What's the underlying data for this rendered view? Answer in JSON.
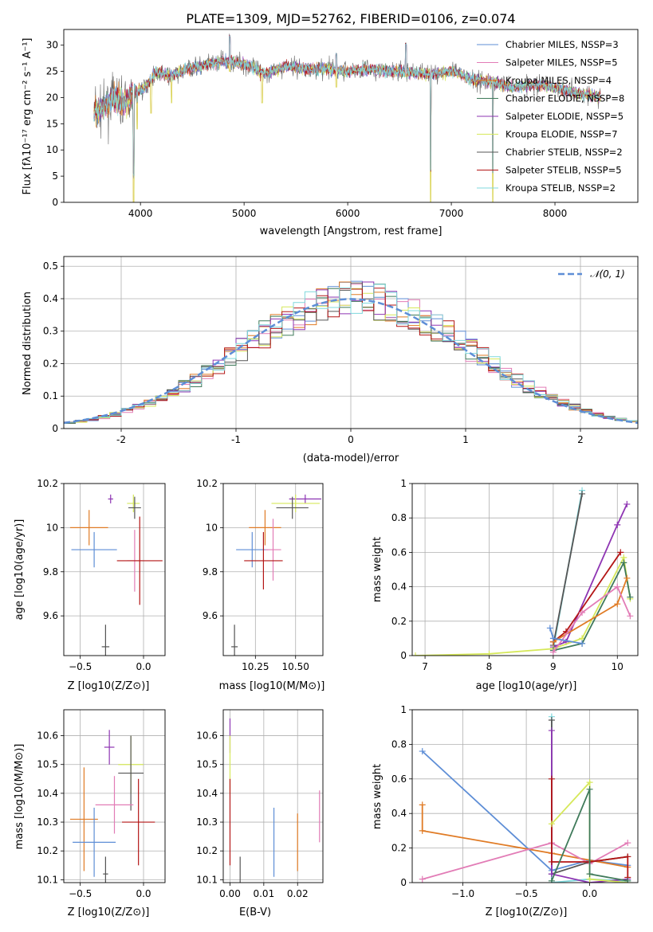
{
  "chart_data": [
    {
      "id": "spectrum",
      "type": "line",
      "title": "PLATE=1309, MJD=52762, FIBERID=0106, z=0.074",
      "xlabel": "wavelength [Angstrom, rest frame]",
      "ylabel": "Flux [fλ10⁻¹⁷ erg cm⁻² s⁻¹ A⁻¹]",
      "xlim": [
        3260,
        8800
      ],
      "ylim": [
        0,
        33
      ],
      "xticks": [
        4000,
        5000,
        6000,
        7000,
        8000
      ],
      "yticks": [
        0,
        5,
        10,
        15,
        20,
        25,
        30
      ],
      "legend_position": "top-right",
      "legend": [
        {
          "label": "Chabrier MILES, NSSP=3",
          "color": "#5e8ed6"
        },
        {
          "label": "Salpeter MILES, NSSP=5",
          "color": "#e27cb6"
        },
        {
          "label": "Kroupa MILES, NSSP=4",
          "color": "#e07b25"
        },
        {
          "label": "Chabrier ELODIE, NSSP=8",
          "color": "#3f7a5a"
        },
        {
          "label": "Salpeter ELODIE, NSSP=5",
          "color": "#8e35b3"
        },
        {
          "label": "Kroupa ELODIE, NSSP=7",
          "color": "#d6e85a"
        },
        {
          "label": "Chabrier STELIB, NSSP=2",
          "color": "#555555"
        },
        {
          "label": "Salpeter STELIB, NSSP=5",
          "color": "#b31515"
        },
        {
          "label": "Kroupa STELIB, NSSP=2",
          "color": "#7fd8dc"
        }
      ],
      "continuum": [
        [
          3550,
          17
        ],
        [
          3650,
          18
        ],
        [
          3750,
          20
        ],
        [
          3850,
          19
        ],
        [
          3950,
          21
        ],
        [
          4050,
          22
        ],
        [
          4150,
          25
        ],
        [
          4300,
          24
        ],
        [
          4450,
          25.5
        ],
        [
          4600,
          26
        ],
        [
          4800,
          27
        ],
        [
          5000,
          26.5
        ],
        [
          5200,
          24.5
        ],
        [
          5400,
          26
        ],
        [
          5600,
          25.5
        ],
        [
          5800,
          25.5
        ],
        [
          6000,
          25
        ],
        [
          6200,
          25.5
        ],
        [
          6400,
          25
        ],
        [
          6600,
          24.8
        ],
        [
          6800,
          24.5
        ],
        [
          7000,
          25
        ],
        [
          7200,
          23.5
        ],
        [
          7400,
          23
        ],
        [
          7600,
          22
        ],
        [
          7800,
          22.5
        ],
        [
          8000,
          22
        ],
        [
          8200,
          21
        ],
        [
          8450,
          20
        ]
      ],
      "features": [
        [
          3934,
          0
        ],
        [
          3968,
          14
        ],
        [
          4102,
          17
        ],
        [
          4300,
          19
        ],
        [
          4861,
          25
        ],
        [
          5175,
          19
        ],
        [
          5890,
          22
        ],
        [
          6563,
          24
        ],
        [
          6800,
          0
        ],
        [
          7400,
          0
        ]
      ]
    },
    {
      "id": "residuals",
      "type": "histogram",
      "xlabel": "(data-model)/error",
      "ylabel": "Normed distribution",
      "xlim": [
        -2.5,
        2.5
      ],
      "ylim": [
        0,
        0.53
      ],
      "xticks": [
        -2,
        -1,
        0,
        1,
        2
      ],
      "yticks": [
        0.0,
        0.1,
        0.2,
        0.3,
        0.4,
        0.5
      ],
      "legend": [
        {
          "label": "𝒩(0, 1)",
          "color": "#5e8ed6"
        }
      ],
      "legend_position": "top-right",
      "bin_width": 0.1
    },
    {
      "id": "age_vs_Z",
      "type": "scatter",
      "xlabel": "Z [log10(Z/Z⊙)]",
      "ylabel": "age [log10(age/yr)]",
      "xlim": [
        -0.63,
        0.17
      ],
      "ylim": [
        9.42,
        10.2
      ],
      "xticks": [
        -0.5,
        0.0
      ],
      "xtick_labels": [
        "−0.5",
        "0.0"
      ],
      "yticks": [
        9.6,
        9.8,
        10.0,
        10.2
      ],
      "points": [
        {
          "x": -0.26,
          "y": 10.13,
          "ex": 0.02,
          "ey": 0.02,
          "color": "#8e35b3"
        },
        {
          "x": -0.08,
          "y": 10.11,
          "ex": 0.05,
          "ey": 0.04,
          "color": "#d6e85a"
        },
        {
          "x": -0.07,
          "y": 10.09,
          "ex": 0.05,
          "ey": 0.05,
          "color": "#555555"
        },
        {
          "x": -0.43,
          "y": 10.0,
          "ex": 0.15,
          "ey": 0.08,
          "color": "#e07b25"
        },
        {
          "x": -0.39,
          "y": 9.9,
          "ex": 0.18,
          "ey": 0.08,
          "color": "#5e8ed6"
        },
        {
          "x": -0.07,
          "y": 9.85,
          "ex": 0.06,
          "ey": 0.14,
          "color": "#e27cb6"
        },
        {
          "x": -0.03,
          "y": 9.85,
          "ex": 0.18,
          "ey": 0.2,
          "color": "#b31515"
        },
        {
          "x": -0.3,
          "y": 9.46,
          "ex": 0.03,
          "ey": 0.1,
          "color": "#555555"
        }
      ]
    },
    {
      "id": "age_vs_mass",
      "type": "scatter",
      "xlabel": "mass [log10(M/M⊙)]",
      "ylabel": "",
      "xlim": [
        10.05,
        10.67
      ],
      "ylim": [
        9.42,
        10.2
      ],
      "xticks": [
        10.25,
        10.5
      ],
      "xtick_labels": [
        "10.25",
        "10.50"
      ],
      "yticks": [
        9.6,
        9.8,
        10.0,
        10.2
      ],
      "points": [
        {
          "x": 10.56,
          "y": 10.13,
          "ex": 0.1,
          "ey": 0.02,
          "color": "#8e35b3"
        },
        {
          "x": 10.5,
          "y": 10.11,
          "ex": 0.15,
          "ey": 0.04,
          "color": "#d6e85a"
        },
        {
          "x": 10.48,
          "y": 10.09,
          "ex": 0.1,
          "ey": 0.05,
          "color": "#555555"
        },
        {
          "x": 10.31,
          "y": 10.0,
          "ex": 0.1,
          "ey": 0.08,
          "color": "#e07b25"
        },
        {
          "x": 10.23,
          "y": 9.9,
          "ex": 0.1,
          "ey": 0.08,
          "color": "#5e8ed6"
        },
        {
          "x": 10.36,
          "y": 9.9,
          "ex": 0.05,
          "ey": 0.14,
          "color": "#e27cb6"
        },
        {
          "x": 10.3,
          "y": 9.85,
          "ex": 0.12,
          "ey": 0.13,
          "color": "#b31515"
        },
        {
          "x": 10.12,
          "y": 9.46,
          "ex": 0.02,
          "ey": 0.1,
          "color": "#555555"
        }
      ]
    },
    {
      "id": "weight_vs_age",
      "type": "line",
      "xlabel": "age [log10(age/yr)]",
      "ylabel": "mass weight",
      "xlim": [
        6.8,
        10.32
      ],
      "ylim": [
        0.0,
        1.0
      ],
      "xticks": [
        7,
        8,
        9,
        10
      ],
      "yticks": [
        0.0,
        0.2,
        0.4,
        0.6,
        0.8,
        1.0
      ],
      "series": [
        {
          "color": "#7fd8dc",
          "points": [
            [
              9.0,
              0.04
            ],
            [
              9.45,
              0.96
            ]
          ]
        },
        {
          "color": "#555555",
          "points": [
            [
              9.0,
              0.06
            ],
            [
              9.45,
              0.94
            ]
          ]
        },
        {
          "color": "#8e35b3",
          "points": [
            [
              9.0,
              0.05
            ],
            [
              9.2,
              0.08
            ],
            [
              10.0,
              0.76
            ],
            [
              10.15,
              0.88
            ]
          ]
        },
        {
          "color": "#b31515",
          "points": [
            [
              9.0,
              0.08
            ],
            [
              9.2,
              0.14
            ],
            [
              10.05,
              0.6
            ]
          ]
        },
        {
          "color": "#d6e85a",
          "points": [
            [
              6.85,
              0.0
            ],
            [
              8.0,
              0.01
            ],
            [
              9.0,
              0.04
            ],
            [
              9.45,
              0.1
            ],
            [
              10.1,
              0.57
            ],
            [
              10.2,
              0.33
            ]
          ]
        },
        {
          "color": "#3f7a5a",
          "points": [
            [
              9.0,
              0.03
            ],
            [
              9.45,
              0.07
            ],
            [
              10.1,
              0.54
            ],
            [
              10.2,
              0.34
            ]
          ]
        },
        {
          "color": "#e07b25",
          "points": [
            [
              9.0,
              0.08
            ],
            [
              10.0,
              0.3
            ],
            [
              10.15,
              0.45
            ]
          ]
        },
        {
          "color": "#e27cb6",
          "points": [
            [
              9.0,
              0.02
            ],
            [
              9.45,
              0.25
            ],
            [
              10.0,
              0.4
            ],
            [
              10.2,
              0.23
            ]
          ]
        },
        {
          "color": "#5e8ed6",
          "points": [
            [
              8.95,
              0.16
            ],
            [
              9.0,
              0.1
            ],
            [
              9.45,
              0.07
            ]
          ]
        }
      ]
    },
    {
      "id": "mass_vs_Z",
      "type": "scatter",
      "xlabel": "Z [log10(Z/Z⊙)]",
      "ylabel": "mass [log10(M/M⊙)]",
      "xlim": [
        -0.63,
        0.17
      ],
      "ylim": [
        10.09,
        10.69
      ],
      "xticks": [
        -0.5,
        0.0
      ],
      "xtick_labels": [
        "−0.5",
        "0.0"
      ],
      "yticks": [
        10.1,
        10.2,
        10.3,
        10.4,
        10.5,
        10.6
      ],
      "points": [
        {
          "x": -0.27,
          "y": 10.56,
          "ex": 0.04,
          "ey": 0.06,
          "color": "#8e35b3"
        },
        {
          "x": -0.1,
          "y": 10.5,
          "ex": 0.1,
          "ey": 0.1,
          "color": "#d6e85a"
        },
        {
          "x": -0.1,
          "y": 10.47,
          "ex": 0.1,
          "ey": 0.13,
          "color": "#555555"
        },
        {
          "x": -0.23,
          "y": 10.36,
          "ex": 0.15,
          "ey": 0.1,
          "color": "#e27cb6"
        },
        {
          "x": -0.47,
          "y": 10.31,
          "ex": 0.11,
          "ey": 0.18,
          "color": "#e07b25"
        },
        {
          "x": -0.04,
          "y": 10.3,
          "ex": 0.13,
          "ey": 0.15,
          "color": "#b31515"
        },
        {
          "x": -0.39,
          "y": 10.23,
          "ex": 0.17,
          "ey": 0.12,
          "color": "#5e8ed6"
        },
        {
          "x": -0.3,
          "y": 10.12,
          "ex": 0.02,
          "ey": 0.06,
          "color": "#555555"
        }
      ]
    },
    {
      "id": "mass_vs_ebv",
      "type": "scatter",
      "xlabel": "E(B-V)",
      "ylabel": "",
      "xlim": [
        -0.002,
        0.0275
      ],
      "ylim": [
        10.09,
        10.69
      ],
      "xticks": [
        0.0,
        0.01,
        0.02
      ],
      "xtick_labels": [
        "0.00",
        "0.01",
        "0.02"
      ],
      "yticks": [
        10.1,
        10.2,
        10.3,
        10.4,
        10.5,
        10.6
      ],
      "points": [
        {
          "x": 0.0,
          "y": 10.6,
          "ex": 0,
          "ey": 0.06,
          "color": "#8e35b3"
        },
        {
          "x": 0.0,
          "y": 10.5,
          "ex": 0,
          "ey": 0.1,
          "color": "#d6e85a"
        },
        {
          "x": 0.0,
          "y": 10.3,
          "ex": 0,
          "ey": 0.15,
          "color": "#b31515"
        },
        {
          "x": 0.003,
          "y": 10.12,
          "ex": 0,
          "ey": 0.06,
          "color": "#555555"
        },
        {
          "x": 0.013,
          "y": 10.23,
          "ex": 0,
          "ey": 0.12,
          "color": "#5e8ed6"
        },
        {
          "x": 0.02,
          "y": 10.23,
          "ex": 0,
          "ey": 0.1,
          "color": "#e07b25"
        },
        {
          "x": 0.0265,
          "y": 10.32,
          "ex": 0,
          "ey": 0.09,
          "color": "#e27cb6"
        }
      ]
    },
    {
      "id": "weight_vs_Z",
      "type": "line",
      "xlabel": "Z [log10(Z/Z⊙)]",
      "ylabel": "mass weight",
      "xlim": [
        -1.4,
        0.38
      ],
      "ylim": [
        0.0,
        1.0
      ],
      "xticks": [
        -1.0,
        -0.5,
        0.0
      ],
      "xtick_labels": [
        "−1.0",
        "−0.5",
        "0.0"
      ],
      "yticks": [
        0.0,
        0.2,
        0.4,
        0.6,
        0.8,
        1.0
      ],
      "series": [
        {
          "color": "#5e8ed6",
          "points": [
            [
              -1.32,
              0.76
            ],
            [
              -0.3,
              0.07
            ],
            [
              0.0,
              0.13
            ],
            [
              0.3,
              0.1
            ]
          ]
        },
        {
          "color": "#e07b25",
          "points": [
            [
              -1.32,
              0.45
            ],
            [
              -1.32,
              0.3
            ],
            [
              -0.3,
              0.17
            ],
            [
              0.3,
              0.09
            ]
          ]
        },
        {
          "color": "#e27cb6",
          "points": [
            [
              -1.32,
              0.02
            ],
            [
              -0.3,
              0.23
            ],
            [
              0.0,
              0.11
            ],
            [
              0.3,
              0.23
            ]
          ]
        },
        {
          "color": "#7fd8dc",
          "points": [
            [
              -0.3,
              0.96
            ],
            [
              -0.3,
              0.0
            ],
            [
              0.0,
              0.02
            ],
            [
              0.3,
              0.01
            ]
          ]
        },
        {
          "color": "#555555",
          "points": [
            [
              -0.3,
              0.94
            ],
            [
              -0.3,
              0.05
            ],
            [
              0.0,
              0.12
            ],
            [
              0.3,
              0.15
            ]
          ]
        },
        {
          "color": "#8e35b3",
          "points": [
            [
              -0.3,
              0.88
            ],
            [
              -0.3,
              0.05
            ],
            [
              0.0,
              0.0
            ],
            [
              0.3,
              0.02
            ]
          ]
        },
        {
          "color": "#b31515",
          "points": [
            [
              -0.3,
              0.6
            ],
            [
              -0.3,
              0.12
            ],
            [
              0.0,
              0.12
            ],
            [
              0.3,
              0.15
            ],
            [
              0.3,
              0.03
            ]
          ]
        },
        {
          "color": "#d6e85a",
          "points": [
            [
              -0.3,
              0.34
            ],
            [
              0.0,
              0.58
            ],
            [
              0.0,
              0.02
            ],
            [
              0.3,
              0.0
            ]
          ]
        },
        {
          "color": "#3f7a5a",
          "points": [
            [
              -0.3,
              0.01
            ],
            [
              0.0,
              0.54
            ],
            [
              0.0,
              0.05
            ],
            [
              0.3,
              0.01
            ]
          ]
        }
      ]
    }
  ]
}
